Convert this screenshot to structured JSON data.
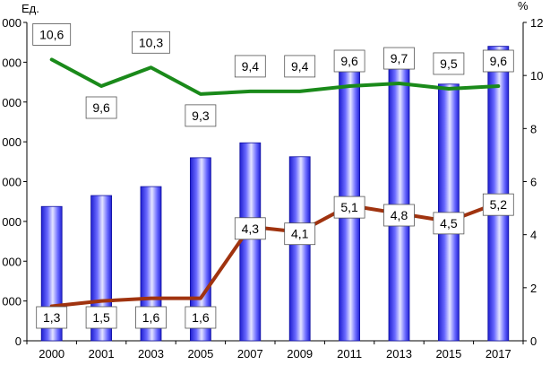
{
  "chart_data": {
    "type": "bar",
    "categories": [
      "2000",
      "2001",
      "2003",
      "2005",
      "2007",
      "2009",
      "2011",
      "2013",
      "2015",
      "2017"
    ],
    "series": [
      {
        "type": "bar",
        "axis": "left",
        "color": "#3b3bff",
        "values": [
          3375,
          3650,
          3875,
          4600,
          4975,
          4625,
          6850,
          6850,
          6450,
          7400
        ]
      },
      {
        "type": "line",
        "axis": "right",
        "color": "#1a8a1a",
        "values": [
          10.6,
          9.6,
          10.3,
          9.3,
          9.4,
          9.4,
          9.6,
          9.7,
          9.5,
          9.6
        ],
        "labels": [
          "10,6",
          "9,6",
          "10,3",
          "9,3",
          "9,4",
          "9,4",
          "9,6",
          "9,7",
          "9,5",
          "9,6"
        ]
      },
      {
        "type": "line",
        "axis": "right",
        "color": "#a0330f",
        "values": [
          1.3,
          1.5,
          1.6,
          1.6,
          4.3,
          4.1,
          5.1,
          4.8,
          4.5,
          5.2
        ],
        "labels": [
          "1,3",
          "1,5",
          "1,6",
          "1,6",
          "4,3",
          "4,1",
          "5,1",
          "4,8",
          "4,5",
          "5,2"
        ]
      }
    ],
    "y_left": {
      "unit": "Ед.",
      "ylim": [
        0,
        8000
      ],
      "ticks": [
        0,
        1000,
        2000,
        3000,
        4000,
        5000,
        6000,
        7000,
        8000
      ],
      "tick_labels": [
        "0",
        "000",
        "000",
        "000",
        "000",
        "000",
        "000",
        "000",
        "000"
      ]
    },
    "y_right": {
      "unit": "%",
      "ylim": [
        0,
        12
      ],
      "ticks": [
        0,
        2,
        4,
        6,
        8,
        10,
        12
      ],
      "tick_labels": [
        "0",
        "2",
        "4",
        "6",
        "8",
        "10",
        "12"
      ]
    },
    "grid": false,
    "legend": "none"
  }
}
